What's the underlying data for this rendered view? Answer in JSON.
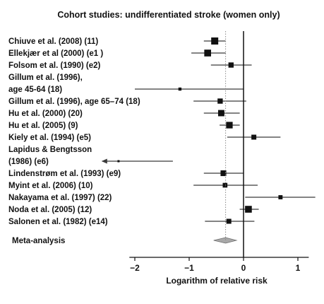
{
  "chart_data": {
    "type": "forest",
    "title": "Cohort studies: undifferentiated stroke (women only)",
    "xlabel": "Logarithm of relative risk",
    "xlim": [
      -2.0,
      1.3
    ],
    "xticks": [
      -2,
      -1,
      0,
      1
    ],
    "xtick_labels": [
      "−2",
      "−1",
      "0",
      "1"
    ],
    "null_line": 0,
    "pooled_reference": -0.33,
    "studies": [
      {
        "label_lines": [
          "Chiuve et al. (2008) (11)"
        ],
        "estimate": -0.53,
        "ci": [
          -0.73,
          -0.33
        ],
        "weight": 1.0
      },
      {
        "label_lines": [
          "Ellekjær et al (2000) (e1 )"
        ],
        "estimate": -0.66,
        "ci": [
          -0.96,
          -0.33
        ],
        "weight": 0.95
      },
      {
        "label_lines": [
          "Folsom et al. (1990) (e2)"
        ],
        "estimate": -0.23,
        "ci": [
          -0.6,
          0.15
        ],
        "weight": 0.65
      },
      {
        "label_lines": [
          "Gillum et al. (1996),",
          "age 45-64 (18)"
        ],
        "estimate": -1.17,
        "ci": [
          -2.0,
          0.0
        ],
        "weight": 0.25
      },
      {
        "label_lines": [
          "Gillum et al. (1996), age 65–74 (18)"
        ],
        "estimate": -0.43,
        "ci": [
          -0.92,
          0.05
        ],
        "weight": 0.65
      },
      {
        "label_lines": [
          "Hu et al. (2000) (20)"
        ],
        "estimate": -0.41,
        "ci": [
          -0.73,
          -0.07
        ],
        "weight": 0.85
      },
      {
        "label_lines": [
          "Hu et al. (2005) (9)"
        ],
        "estimate": -0.26,
        "ci": [
          -0.44,
          -0.07
        ],
        "weight": 0.9
      },
      {
        "label_lines": [
          "Kiely et al. (1994) (e5)"
        ],
        "estimate": 0.19,
        "ci": [
          -0.3,
          0.68
        ],
        "weight": 0.6
      },
      {
        "label_lines": [
          "Lapidus & Bengtsson",
          "(1986) (e6)"
        ],
        "estimate": -2.28,
        "ci": [
          -2.6,
          -1.3
        ],
        "weight": 0.2,
        "arrow_left": true
      },
      {
        "label_lines": [
          "Lindenstrøm et al. (1993) (e9)"
        ],
        "estimate": -0.37,
        "ci": [
          -0.73,
          0.0
        ],
        "weight": 0.75
      },
      {
        "label_lines": [
          "Myint et al. (2006) (10)"
        ],
        "estimate": -0.34,
        "ci": [
          -0.92,
          0.26
        ],
        "weight": 0.55
      },
      {
        "label_lines": [
          "Nakayama et al. (1997) (22)"
        ],
        "estimate": 0.68,
        "ci": [
          0.03,
          1.32
        ],
        "weight": 0.45
      },
      {
        "label_lines": [
          "Noda et al. (2005) (12)"
        ],
        "estimate": 0.09,
        "ci": [
          -0.07,
          0.28
        ],
        "weight": 0.95
      },
      {
        "label_lines": [
          "Salonen et al. (1982) (e14)"
        ],
        "estimate": -0.27,
        "ci": [
          -0.71,
          0.2
        ],
        "weight": 0.6
      }
    ],
    "meta_analysis": {
      "label": "Meta-analysis",
      "estimate": -0.33,
      "ci": [
        -0.55,
        -0.13
      ]
    }
  }
}
